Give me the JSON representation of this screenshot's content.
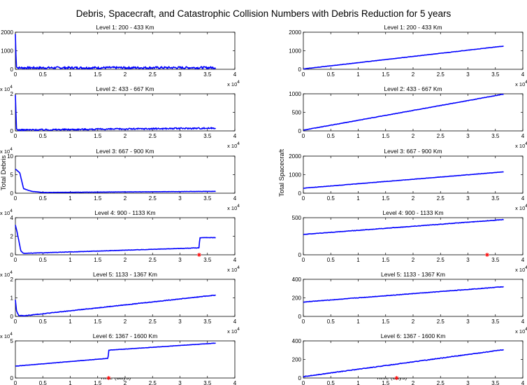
{
  "figure": {
    "title": "Debris, Spacecraft, and Catastrophic Collision Numbers with Debris Reduction for 5 years",
    "left_ylabel": "Total Debris",
    "right_ylabel": "Total Spacecraft",
    "xlabel": "Time (days)"
  },
  "chart_data": [
    {
      "type": "line",
      "column": "debris",
      "title": "Level 1: 200 - 433 Km",
      "xlim": [
        0,
        40000
      ],
      "ylim": [
        0,
        2000
      ],
      "yticks": [
        "0",
        "1000",
        "2000"
      ],
      "yexp": "",
      "xticks": [
        "0",
        "0.5",
        "1",
        "1.5",
        "2",
        "2.5",
        "3",
        "3.5",
        "4"
      ],
      "xexp": "x 10^4",
      "series": [
        {
          "x": [
            0,
            150,
            400,
            36500
          ],
          "y": [
            1900,
            200,
            80,
            90
          ],
          "noise": 60
        }
      ],
      "collisions": []
    },
    {
      "type": "line",
      "column": "spacecraft",
      "title": "Level 1: 200 - 433 Km",
      "xlim": [
        0,
        40000
      ],
      "ylim": [
        0,
        2000
      ],
      "yticks": [
        "0",
        "1000",
        "2000"
      ],
      "yexp": "",
      "xticks": [
        "0",
        "0.5",
        "1",
        "1.5",
        "2",
        "2.5",
        "3",
        "3.5",
        "4"
      ],
      "xexp": "x 10^4",
      "series": [
        {
          "x": [
            0,
            36500
          ],
          "y": [
            20,
            1250
          ],
          "noise": 8
        }
      ],
      "collisions": []
    },
    {
      "type": "line",
      "column": "debris",
      "title": "Level 2: 433 - 667 Km",
      "xlim": [
        0,
        40000
      ],
      "ylim": [
        0,
        2
      ],
      "yticks": [
        "0",
        "1",
        "2"
      ],
      "yexp": "x 10^4",
      "xticks": [
        "0",
        "0.5",
        "1",
        "1.5",
        "2",
        "2.5",
        "3",
        "3.5",
        "4"
      ],
      "xexp": "x 10^4",
      "series": [
        {
          "x": [
            0,
            200,
            500,
            36500
          ],
          "y": [
            1.9,
            0.1,
            0.05,
            0.15
          ],
          "noise": 0.04
        }
      ],
      "collisions": []
    },
    {
      "type": "line",
      "column": "spacecraft",
      "title": "Level 2: 433 - 667 Km",
      "xlim": [
        0,
        40000
      ],
      "ylim": [
        0,
        1000
      ],
      "yticks": [
        "0",
        "500",
        "1000"
      ],
      "yexp": "",
      "xticks": [
        "0",
        "0.5",
        "1",
        "1.5",
        "2",
        "2.5",
        "3",
        "3.5",
        "4"
      ],
      "xexp": "x 10^4",
      "series": [
        {
          "x": [
            0,
            36500
          ],
          "y": [
            20,
            990
          ],
          "noise": 5
        }
      ],
      "collisions": []
    },
    {
      "type": "line",
      "column": "debris",
      "title": "Level 3: 667 - 900 Km",
      "xlim": [
        0,
        40000
      ],
      "ylim": [
        0,
        10
      ],
      "yticks": [
        "0",
        "5",
        "10"
      ],
      "yexp": "x 10^4",
      "xticks": [
        "0",
        "0.5",
        "1",
        "1.5",
        "2",
        "2.5",
        "3",
        "3.5",
        "4"
      ],
      "xexp": "x 10^4",
      "series": [
        {
          "x": [
            0,
            800,
            1500,
            3000,
            5000,
            36500
          ],
          "y": [
            6.5,
            5.5,
            1.2,
            0.5,
            0.2,
            0.5
          ],
          "noise": 0.03
        }
      ],
      "collisions": []
    },
    {
      "type": "line",
      "column": "spacecraft",
      "title": "Level 3: 667 - 900 Km",
      "xlim": [
        0,
        40000
      ],
      "ylim": [
        0,
        2000
      ],
      "yticks": [
        "0",
        "1000",
        "2000"
      ],
      "yexp": "",
      "xticks": [
        "0",
        "0.5",
        "1",
        "1.5",
        "2",
        "2.5",
        "3",
        "3.5",
        "4"
      ],
      "xexp": "x 10^4",
      "series": [
        {
          "x": [
            0,
            36500
          ],
          "y": [
            270,
            1150
          ],
          "noise": 8
        }
      ],
      "collisions": []
    },
    {
      "type": "line",
      "column": "debris",
      "title": "Level 4: 900 - 1133 Km",
      "xlim": [
        0,
        40000
      ],
      "ylim": [
        0,
        4
      ],
      "yticks": [
        "0",
        "2",
        "4"
      ],
      "yexp": "x 10^4",
      "xticks": [
        "0",
        "0.5",
        "1",
        "1.5",
        "2",
        "2.5",
        "3",
        "3.5",
        "4"
      ],
      "xexp": "x 10^4",
      "series": [
        {
          "x": [
            0,
            300,
            1000,
            1500,
            33500,
            33600,
            36500
          ],
          "y": [
            3.2,
            2.5,
            0.4,
            0.15,
            0.75,
            1.85,
            1.85
          ],
          "noise": 0.02
        }
      ],
      "collisions": [
        {
          "x": 33500,
          "y": 0
        }
      ]
    },
    {
      "type": "line",
      "column": "spacecraft",
      "title": "Level 4: 900 - 1133 Km",
      "xlim": [
        0,
        40000
      ],
      "ylim": [
        0,
        500
      ],
      "yticks": [
        "0",
        "500"
      ],
      "yexp": "",
      "xticks": [
        "0",
        "0.5",
        "1",
        "1.5",
        "2",
        "2.5",
        "3",
        "3.5",
        "4"
      ],
      "xexp": "x 10^4",
      "series": [
        {
          "x": [
            0,
            36500
          ],
          "y": [
            275,
            475
          ],
          "noise": 3
        }
      ],
      "collisions": [
        {
          "x": 33500,
          "y": 0
        }
      ]
    },
    {
      "type": "line",
      "column": "debris",
      "title": "Level 5: 1133 - 1367 Km",
      "xlim": [
        0,
        40000
      ],
      "ylim": [
        0,
        2
      ],
      "yticks": [
        "0",
        "1",
        "2"
      ],
      "yexp": "x 10^4",
      "xticks": [
        "0",
        "0.5",
        "1",
        "1.5",
        "2",
        "2.5",
        "3",
        "3.5",
        "4"
      ],
      "xexp": "x 10^4",
      "series": [
        {
          "x": [
            0,
            200,
            600,
            1500,
            36500
          ],
          "y": [
            0.9,
            0.3,
            0.05,
            0.03,
            1.15
          ],
          "noise": 0.015
        }
      ],
      "collisions": []
    },
    {
      "type": "line",
      "column": "spacecraft",
      "title": "Level 5: 1133 - 1367 Km",
      "xlim": [
        0,
        40000
      ],
      "ylim": [
        0,
        400
      ],
      "yticks": [
        "0",
        "200",
        "400"
      ],
      "yexp": "",
      "xticks": [
        "0",
        "0.5",
        "1",
        "1.5",
        "2",
        "2.5",
        "3",
        "3.5",
        "4"
      ],
      "xexp": "x 10^4",
      "series": [
        {
          "x": [
            0,
            36500
          ],
          "y": [
            155,
            320
          ],
          "noise": 2.5
        }
      ],
      "collisions": []
    },
    {
      "type": "line",
      "column": "debris",
      "title": "Level 6: 1367 - 1600 Km",
      "xlim": [
        0,
        40000
      ],
      "ylim": [
        0,
        5
      ],
      "yticks": [
        "0",
        "5"
      ],
      "yexp": "x 10^4",
      "xticks": [
        "0",
        "0.5",
        "1",
        "1.5",
        "2",
        "2.5",
        "3",
        "3.5",
        "4"
      ],
      "xexp": "x 10^4",
      "series": [
        {
          "x": [
            0,
            16900,
            17000,
            36500
          ],
          "y": [
            1.6,
            2.65,
            3.75,
            4.7
          ],
          "noise": 0.02
        }
      ],
      "collisions": [
        {
          "x": 17000,
          "y": 0
        }
      ]
    },
    {
      "type": "line",
      "column": "spacecraft",
      "title": "Level 6: 1367 - 1600 Km",
      "xlim": [
        0,
        40000
      ],
      "ylim": [
        0,
        400
      ],
      "yticks": [
        "0",
        "200",
        "400"
      ],
      "yexp": "",
      "xticks": [
        "0",
        "0.5",
        "1",
        "1.5",
        "2",
        "2.5",
        "3",
        "3.5",
        "4"
      ],
      "xexp": "x 10^4",
      "series": [
        {
          "x": [
            0,
            36500
          ],
          "y": [
            15,
            305
          ],
          "noise": 3
        }
      ],
      "collisions": [
        {
          "x": 17000,
          "y": 0
        }
      ]
    }
  ]
}
